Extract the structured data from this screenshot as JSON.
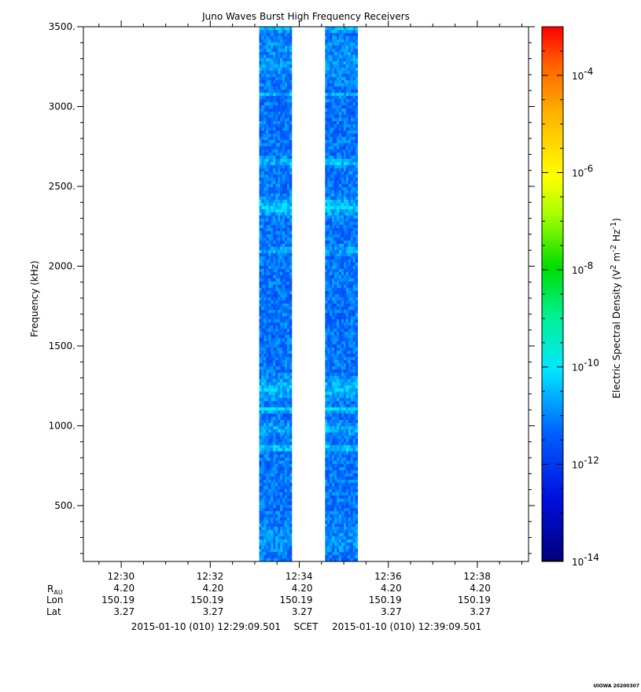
{
  "chart_data": {
    "type": "heatmap",
    "title": "Juno Waves Burst High Frequency Receivers",
    "ylabel": "Frequency (kHz)",
    "colorbar_label_parts": [
      "Electric Spectral Density (V",
      "2",
      " m",
      "-2",
      " Hz",
      "-1",
      ")"
    ],
    "colorbar_scale": "log",
    "colorbar_range": [
      "1e-14",
      "1e-3"
    ],
    "colorbar_ticks": [
      {
        "mantissa": "10",
        "exp": "-14",
        "exp_value": -14
      },
      {
        "mantissa": "10",
        "exp": "-12",
        "exp_value": -12
      },
      {
        "mantissa": "10",
        "exp": "-10",
        "exp_value": -10
      },
      {
        "mantissa": "10",
        "exp": "-8",
        "exp_value": -8
      },
      {
        "mantissa": "10",
        "exp": "-6",
        "exp_value": -6
      },
      {
        "mantissa": "10",
        "exp": "-4",
        "exp_value": -4
      }
    ],
    "y_range_khz": [
      150,
      3500
    ],
    "y_ticks": [
      {
        "value": 500,
        "label": "500."
      },
      {
        "value": 1000,
        "label": "1000."
      },
      {
        "value": 1500,
        "label": "1500."
      },
      {
        "value": 2000,
        "label": "2000."
      },
      {
        "value": 2500,
        "label": "2500."
      },
      {
        "value": 3000,
        "label": "3000."
      },
      {
        "value": 3500,
        "label": "3500."
      }
    ],
    "x_range_minutes": [
      0,
      10
    ],
    "x_ticks": [
      {
        "minute": 0.85,
        "label": "12:30",
        "r_au": "4.20",
        "lon": "150.19",
        "lat": "3.27"
      },
      {
        "minute": 2.85,
        "label": "12:32",
        "r_au": "4.20",
        "lon": "150.19",
        "lat": "3.27"
      },
      {
        "minute": 4.85,
        "label": "12:34",
        "r_au": "4.20",
        "lon": "150.19",
        "lat": "3.27"
      },
      {
        "minute": 6.85,
        "label": "12:36",
        "r_au": "4.20",
        "lon": "150.19",
        "lat": "3.27"
      },
      {
        "minute": 8.85,
        "label": "12:38",
        "r_au": "4.20",
        "lon": "150.19",
        "lat": "3.27"
      }
    ],
    "ephemeris_labels": {
      "r_main": "R",
      "r_sub": "AU",
      "lon": "Lon",
      "lat": "Lat"
    },
    "scet": {
      "start": "2015-01-10 (010) 12:29:09.501",
      "label": "SCET",
      "end": "2015-01-10 (010) 12:39:09.501"
    },
    "data_blocks": [
      {
        "start_minute": 3.95,
        "end_minute": 4.68,
        "background_log10": -11.9
      },
      {
        "start_minute": 5.43,
        "end_minute": 6.16,
        "background_log10": -11.9
      }
    ],
    "spectral_features": [
      {
        "freq_khz": 3500,
        "width_khz": 40,
        "log10": -11.0
      },
      {
        "freq_khz": 3300,
        "width_khz": 180,
        "log10": -11.6
      },
      {
        "freq_khz": 3070,
        "width_khz": 12,
        "log10": -10.9
      },
      {
        "freq_khz": 2650,
        "width_khz": 40,
        "log10": -11.3
      },
      {
        "freq_khz": 2370,
        "width_khz": 80,
        "log10": -11.2
      },
      {
        "freq_khz": 2100,
        "width_khz": 40,
        "log10": -11.5
      },
      {
        "freq_khz": 1230,
        "width_khz": 110,
        "log10": -11.3
      },
      {
        "freq_khz": 1100,
        "width_khz": 22,
        "log10": -10.8
      },
      {
        "freq_khz": 980,
        "width_khz": 60,
        "log10": -11.4
      },
      {
        "freq_khz": 860,
        "width_khz": 22,
        "log10": -10.9
      },
      {
        "freq_khz": 290,
        "width_khz": 130,
        "log10": -11.6
      }
    ]
  },
  "footer": {
    "stamp": "UIOWA 20200307"
  }
}
